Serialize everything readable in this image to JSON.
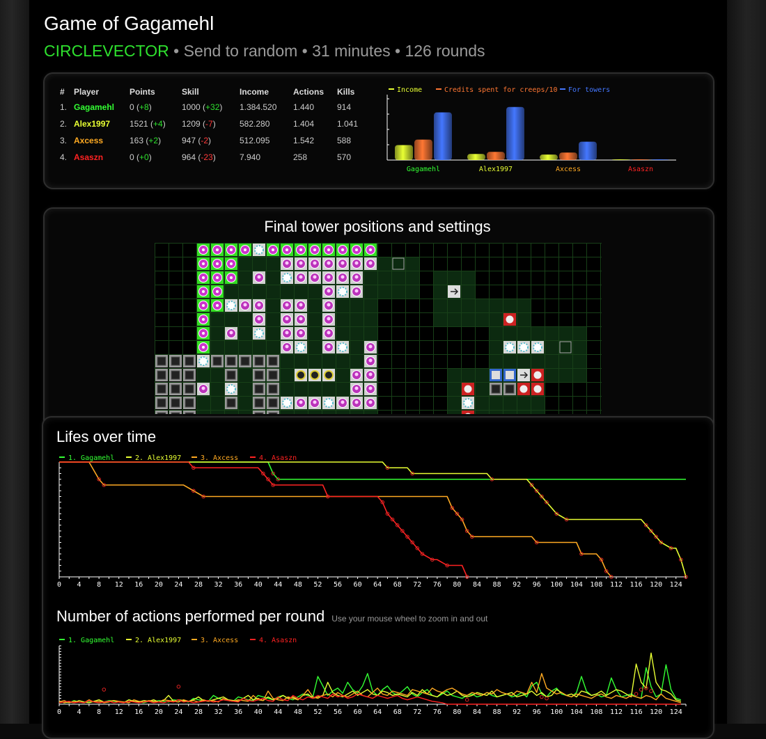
{
  "header": {
    "title": "Game of Gagamehl",
    "mode": "CIRCLEVECTOR",
    "subtitle_rest": " • Send to random • 31 minutes • 126 rounds"
  },
  "players_table": {
    "columns": [
      "#",
      "Player",
      "Points",
      "Skill",
      "Income",
      "Actions",
      "Kills"
    ],
    "rows": [
      {
        "rank": "1.",
        "name": "Gagamehl",
        "color": "#33ff33",
        "points": "0",
        "points_delta": "+8",
        "skill": "1000",
        "skill_delta": "+32",
        "income": "1.384.520",
        "actions": "1.440",
        "kills": "914"
      },
      {
        "rank": "2.",
        "name": "Alex1997",
        "color": "#e8ff33",
        "points": "1521",
        "points_delta": "+4",
        "skill": "1209",
        "skill_delta": "-7",
        "income": "582.280",
        "actions": "1.404",
        "kills": "1.041"
      },
      {
        "rank": "3.",
        "name": "Axcess",
        "color": "#ffaa22",
        "points": "163",
        "points_delta": "+2",
        "skill": "947",
        "skill_delta": "-2",
        "income": "512.095",
        "actions": "1.542",
        "kills": "588"
      },
      {
        "rank": "4.",
        "name": "Asaszn",
        "color": "#ff2222",
        "points": "0",
        "points_delta": "+0",
        "skill": "964",
        "skill_delta": "-23",
        "income": "7.940",
        "actions": "258",
        "kills": "570"
      }
    ]
  },
  "map": {
    "title": "Final tower positions and settings"
  },
  "lifes_title": "Lifes over time",
  "actions_title": "Number of actions performed per round",
  "actions_hint": "Use your mouse wheel to zoom in and out",
  "colors": {
    "p1": "#33ff33",
    "p2": "#e8ff33",
    "p3": "#ffaa22",
    "p4": "#ff2222",
    "income": "#e8ff33",
    "creeps": "#ff7733",
    "towers": "#4477ff"
  },
  "chart_data": [
    {
      "type": "bar",
      "legend": [
        "Income",
        "Credits spent for creeps/10",
        "For towers"
      ],
      "categories": [
        "Gagamehl",
        "Alex1997",
        "Axcess",
        "Asaszn"
      ],
      "series": [
        {
          "name": "Income",
          "values": [
            22,
            9,
            8,
            0.3
          ]
        },
        {
          "name": "Credits spent for creeps/10",
          "values": [
            30,
            12,
            11,
            0.3
          ]
        },
        {
          "name": "For towers",
          "values": [
            70,
            78,
            27,
            1
          ]
        }
      ],
      "ylim": [
        0,
        90
      ],
      "legend_position": "top"
    },
    {
      "type": "line",
      "title": "Lifes over time",
      "legend": [
        "1. Gagamehl",
        "2. Alex1997",
        "3. Axcess",
        "4. Asaszn"
      ],
      "x_ticks": [
        0,
        4,
        8,
        12,
        16,
        20,
        24,
        28,
        32,
        36,
        40,
        44,
        48,
        52,
        56,
        60,
        64,
        68,
        72,
        76,
        80,
        84,
        88,
        92,
        96,
        100,
        104,
        108,
        112,
        116,
        120,
        124
      ],
      "xlim": [
        0,
        126
      ],
      "ylim": [
        0,
        20
      ],
      "series": [
        {
          "name": "1. Gagamehl",
          "points": [
            [
              0,
              20
            ],
            [
              42,
              20
            ],
            [
              43,
              18
            ],
            [
              44,
              17
            ],
            [
              126,
              17
            ]
          ]
        },
        {
          "name": "2. Alex1997",
          "points": [
            [
              0,
              20
            ],
            [
              65,
              20
            ],
            [
              66,
              19
            ],
            [
              70,
              19
            ],
            [
              71,
              18
            ],
            [
              86,
              18
            ],
            [
              87,
              17
            ],
            [
              94,
              17
            ],
            [
              95,
              16
            ],
            [
              96,
              15
            ],
            [
              97,
              14
            ],
            [
              98,
              13
            ],
            [
              100,
              11
            ],
            [
              102,
              10
            ],
            [
              117,
              10
            ],
            [
              118,
              9
            ],
            [
              119,
              8
            ],
            [
              120,
              7
            ],
            [
              121,
              6
            ],
            [
              123,
              5
            ],
            [
              124,
              5
            ],
            [
              125,
              3
            ],
            [
              126,
              0
            ]
          ]
        },
        {
          "name": "3. Axcess",
          "points": [
            [
              0,
              20
            ],
            [
              6,
              20
            ],
            [
              8,
              17
            ],
            [
              9,
              16
            ],
            [
              25,
              16
            ],
            [
              27,
              15
            ],
            [
              29,
              14
            ],
            [
              78,
              14
            ],
            [
              79,
              12
            ],
            [
              80,
              11
            ],
            [
              81,
              10
            ],
            [
              82,
              8
            ],
            [
              83,
              7
            ],
            [
              95,
              7
            ],
            [
              96,
              6
            ],
            [
              97,
              6
            ],
            [
              104,
              6
            ],
            [
              105,
              4
            ],
            [
              108,
              4
            ],
            [
              109,
              3
            ],
            [
              110,
              1
            ],
            [
              111,
              0
            ]
          ]
        },
        {
          "name": "4. Asaszn",
          "points": [
            [
              0,
              20
            ],
            [
              26,
              20
            ],
            [
              27,
              19
            ],
            [
              40,
              19
            ],
            [
              41,
              18
            ],
            [
              42,
              17
            ],
            [
              43,
              16
            ],
            [
              53,
              16
            ],
            [
              54,
              14
            ],
            [
              64,
              14
            ],
            [
              65,
              13
            ],
            [
              66,
              11
            ],
            [
              67,
              10
            ],
            [
              68,
              9
            ],
            [
              69,
              8
            ],
            [
              70,
              7
            ],
            [
              71,
              6
            ],
            [
              72,
              5
            ],
            [
              73,
              4
            ],
            [
              75,
              3
            ],
            [
              76,
              3
            ],
            [
              78,
              2
            ],
            [
              81,
              2
            ],
            [
              82,
              0
            ]
          ]
        }
      ],
      "legend_position": "top-left"
    },
    {
      "type": "line",
      "title": "Number of actions performed per round",
      "legend": [
        "1. Gagamehl",
        "2. Alex1997",
        "3. Axcess",
        "4. Asaszn"
      ],
      "x_ticks": [
        0,
        4,
        8,
        12,
        16,
        20,
        24,
        28,
        32,
        36,
        40,
        44,
        48,
        52,
        56,
        60,
        64,
        68,
        72,
        76,
        80,
        84,
        88,
        92,
        96,
        100,
        104,
        108,
        112,
        116,
        120,
        124
      ],
      "xlim": [
        0,
        126
      ],
      "ylim": [
        0,
        80
      ],
      "legend_position": "top-left",
      "series": [
        {
          "name": "1. Gagamehl",
          "values": [
            2,
            3,
            2,
            5,
            3,
            2,
            4,
            3,
            2,
            3,
            5,
            4,
            3,
            2,
            6,
            4,
            3,
            2,
            4,
            3,
            5,
            4,
            3,
            6,
            5,
            4,
            3,
            8,
            6,
            5,
            4,
            12,
            8,
            6,
            5,
            4,
            10,
            8,
            6,
            5,
            12,
            10,
            8,
            6,
            10,
            12,
            8,
            6,
            10,
            14,
            12,
            10,
            38,
            25,
            12,
            18,
            22,
            15,
            30,
            20,
            15,
            25,
            42,
            18,
            12,
            20,
            25,
            16,
            12,
            18,
            24,
            14,
            10,
            16,
            20,
            12,
            10,
            14,
            18,
            12,
            10,
            8,
            12,
            14,
            10,
            12,
            16,
            12,
            10,
            12,
            14,
            10,
            12,
            16,
            10,
            25,
            30,
            14,
            10,
            18,
            22,
            14,
            12,
            10,
            16,
            38,
            18,
            12,
            14,
            10,
            12,
            36,
            20,
            10,
            12,
            14,
            10,
            8,
            50,
            24,
            10,
            14,
            54,
            20,
            8,
            6
          ]
        },
        {
          "name": "2. Alex1997",
          "values": [
            4,
            2,
            3,
            2,
            5,
            3,
            2,
            4,
            6,
            3,
            4,
            5,
            3,
            2,
            6,
            4,
            3,
            5,
            4,
            6,
            3,
            5,
            12,
            4,
            6,
            5,
            4,
            6,
            10,
            5,
            4,
            6,
            8,
            10,
            6,
            5,
            4,
            8,
            12,
            6,
            8,
            5,
            10,
            6,
            8,
            12,
            8,
            10,
            6,
            12,
            14,
            8,
            10,
            12,
            30,
            16,
            12,
            10,
            14,
            18,
            12,
            16,
            20,
            14,
            12,
            18,
            16,
            12,
            14,
            12,
            10,
            16,
            12,
            20,
            14,
            12,
            10,
            16,
            12,
            14,
            18,
            12,
            10,
            12,
            16,
            14,
            12,
            18,
            10,
            12,
            14,
            16,
            10,
            12,
            14,
            18,
            12,
            16,
            10,
            12,
            20,
            16,
            12,
            14,
            10,
            18,
            16,
            12,
            14,
            18,
            12,
            16,
            20,
            18,
            14,
            10,
            55,
            30,
            22,
            70,
            30,
            20,
            18,
            14,
            6,
            4
          ]
        },
        {
          "name": "3. Axcess",
          "values": [
            3,
            5,
            2,
            4,
            3,
            2,
            6,
            3,
            4,
            2,
            3,
            5,
            4,
            3,
            2,
            6,
            4,
            3,
            5,
            4,
            3,
            6,
            5,
            4,
            3,
            6,
            4,
            5,
            3,
            6,
            4,
            5,
            3,
            8,
            5,
            4,
            6,
            5,
            4,
            12,
            6,
            5,
            18,
            8,
            6,
            5,
            10,
            8,
            6,
            12,
            20,
            10,
            8,
            12,
            14,
            10,
            16,
            12,
            10,
            14,
            18,
            12,
            10,
            16,
            22,
            14,
            12,
            18,
            16,
            14,
            12,
            20,
            18,
            16,
            14,
            22,
            18,
            16,
            20,
            22,
            18,
            14,
            12,
            16,
            14,
            12,
            16,
            14,
            20,
            16,
            14,
            12,
            18,
            16,
            14,
            30,
            16,
            42,
            22,
            18,
            14,
            16,
            12,
            10,
            14,
            12,
            10,
            8,
            12,
            14,
            10,
            8,
            12,
            10,
            8,
            12,
            10,
            8,
            12,
            10,
            6,
            14,
            8,
            6,
            4,
            2
          ]
        },
        {
          "name": "4. Asaszn",
          "values": [
            2,
            3,
            4,
            2,
            3,
            2,
            5,
            3,
            2,
            3,
            4,
            2,
            3,
            2,
            4,
            3,
            2,
            3,
            4,
            2,
            3,
            2,
            4,
            3,
            6,
            3,
            4,
            2,
            3,
            4,
            5,
            3,
            4,
            6,
            5,
            4,
            3,
            8,
            5,
            4,
            6,
            8,
            5,
            4,
            10,
            6,
            5,
            12,
            8,
            6,
            10,
            8,
            12,
            10,
            8,
            14,
            10,
            12,
            8,
            10,
            14,
            12,
            10,
            8,
            12,
            10,
            8,
            10,
            12,
            8,
            6,
            8,
            10,
            8,
            6,
            4,
            3,
            2,
            0,
            0,
            0,
            0,
            0,
            0,
            0,
            0,
            0,
            0,
            0,
            0,
            0,
            0,
            0,
            0,
            0,
            0,
            0,
            0,
            0,
            0,
            0,
            0,
            0,
            0,
            0,
            0,
            0,
            0,
            0,
            0,
            0,
            0,
            0,
            0,
            0,
            0,
            0,
            0,
            0,
            0,
            0,
            0,
            0,
            0,
            0,
            0
          ]
        }
      ]
    }
  ]
}
